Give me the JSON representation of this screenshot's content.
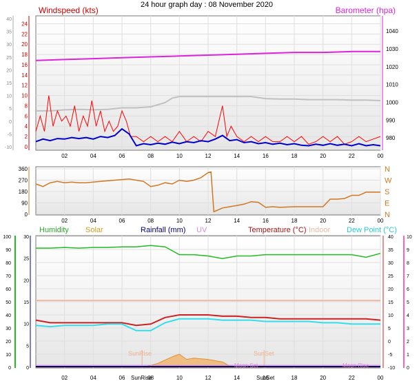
{
  "title": "24 hour graph day : 08 November 2020",
  "colors": {
    "gust": "#ff0000",
    "wind": "#0000cc",
    "wind_left_axis": "#cc0000",
    "baro": "#dd22dd",
    "baro_grey": "#c0c0c0",
    "direction": "#d07820",
    "humidity": "#22bb22",
    "solar": "#e8a030",
    "rain": "#000080",
    "uv": "#dd88dd",
    "temperature": "#cc2222",
    "indoor": "#f0b8a0",
    "dewpoint": "#33ddee",
    "right_temp_axis": "#ff66aa"
  },
  "chart_data": [
    {
      "type": "line",
      "panel": "wind",
      "title": "",
      "labels": {
        "left": "Windspeed (kts)",
        "right": "Barometer (hpa)"
      },
      "x_ticks": [
        "02",
        "04",
        "06",
        "08",
        "10",
        "12",
        "14",
        "16",
        "18",
        "20",
        "22",
        "00"
      ],
      "y_left_ticks": [
        "0",
        "2",
        "4",
        "6",
        "8",
        "10",
        "12",
        "14",
        "16",
        "18",
        "20",
        "22",
        "24"
      ],
      "y_left2_ticks": [
        "-10",
        "-5",
        "0",
        "5",
        "10",
        "15",
        "20",
        "25",
        "30",
        "35",
        "40"
      ],
      "y_right_ticks": [
        "980",
        "990",
        "1000",
        "1010",
        "1020",
        "1030",
        "1040"
      ],
      "ylim_left": [
        0,
        25
      ],
      "ylim_right": [
        975,
        1047
      ],
      "grid": true,
      "series": [
        {
          "name": "Barometer (hpa)",
          "key": "baro",
          "x": [
            0,
            2,
            4,
            6,
            8,
            10,
            12,
            14,
            16,
            18,
            20,
            22,
            24
          ],
          "values": [
            1023.5,
            1024,
            1024.5,
            1025,
            1025.5,
            1026,
            1026.5,
            1027,
            1027.5,
            1028,
            1028,
            1028.5,
            1028.5
          ]
        },
        {
          "key": "baro_grey",
          "x": [
            0,
            1,
            2,
            3,
            4,
            5,
            6,
            7,
            8,
            9,
            9.5,
            10,
            11,
            12,
            13,
            14,
            15,
            16,
            17,
            18,
            19,
            20,
            21,
            22,
            23,
            24
          ],
          "values": [
            7,
            7,
            7.2,
            7.3,
            7.2,
            7.3,
            7.6,
            7.6,
            7.8,
            8.6,
            9.5,
            9.8,
            9.8,
            9.8,
            9.8,
            9.8,
            9.8,
            9.4,
            9.3,
            9.3,
            9.2,
            9.2,
            9.2,
            9.1,
            9.1,
            9
          ]
        },
        {
          "key": "gust",
          "x": [
            0,
            0.3,
            0.6,
            0.9,
            1.2,
            1.5,
            1.8,
            2.1,
            2.4,
            2.7,
            3,
            3.3,
            3.6,
            3.9,
            4.2,
            4.5,
            4.8,
            5.1,
            5.4,
            5.7,
            6,
            6.3,
            6.6,
            7,
            7.5,
            8,
            8.5,
            9,
            9.5,
            10,
            10.5,
            11,
            11.5,
            12,
            12.5,
            13,
            13.3,
            13.6,
            14,
            14.5,
            15,
            15.5,
            16,
            16.5,
            17,
            17.5,
            18,
            18.5,
            19,
            19.5,
            20,
            20.5,
            21,
            21.5,
            22,
            22.5,
            23,
            23.5,
            24
          ],
          "values": [
            3,
            6,
            3,
            10,
            4,
            7,
            5,
            6,
            4,
            8,
            3,
            6,
            4,
            9,
            4,
            7,
            3,
            5,
            3,
            4,
            7,
            5,
            2,
            2,
            1,
            2,
            1,
            2,
            1,
            3,
            1,
            2,
            1,
            3,
            2,
            8,
            2,
            4,
            2,
            1,
            2,
            1,
            2,
            1,
            1,
            2,
            1,
            2,
            0.5,
            1,
            2,
            1,
            2,
            0.5,
            1,
            2,
            1,
            1.5,
            2
          ]
        },
        {
          "key": "wind",
          "x": [
            0,
            0.5,
            1,
            1.5,
            2,
            2.5,
            3,
            3.5,
            4,
            4.5,
            5,
            5.5,
            6,
            6.5,
            7,
            7.5,
            8,
            8.5,
            9,
            9.5,
            10,
            10.5,
            11,
            11.5,
            12,
            12.5,
            13,
            13.5,
            14,
            14.5,
            15,
            15.5,
            16,
            16.5,
            17,
            17.5,
            18,
            18.5,
            19,
            19.5,
            20,
            20.5,
            21,
            21.5,
            22,
            22.5,
            23,
            23.5,
            24
          ],
          "values": [
            1,
            1.5,
            1.2,
            1.6,
            1.5,
            1.8,
            1.6,
            1.8,
            1.5,
            2,
            1.8,
            2.2,
            3.5,
            2.5,
            0.2,
            0.6,
            0.4,
            0.7,
            0.5,
            0.9,
            0.6,
            1,
            0.8,
            1.2,
            1,
            1.5,
            2.2,
            1.2,
            1.4,
            0.8,
            1,
            0.6,
            0.8,
            0.5,
            0.7,
            0.4,
            0.6,
            0.3,
            0.2,
            0.5,
            0.3,
            0.6,
            0.3,
            0.5,
            0.2,
            0.6,
            0.2,
            0.4,
            0.2
          ]
        }
      ]
    },
    {
      "type": "line",
      "panel": "direction",
      "title": "",
      "x_ticks": [
        "02",
        "04",
        "06",
        "08",
        "10",
        "12",
        "14",
        "16",
        "18",
        "20",
        "22",
        "00"
      ],
      "y_ticks": [
        "0",
        "90",
        "180",
        "270",
        "360"
      ],
      "y_right_ticks": [
        "N",
        "E",
        "S",
        "W",
        "N"
      ],
      "ylim": [
        0,
        360
      ],
      "series": [
        {
          "key": "direction",
          "x": [
            0,
            0.5,
            1,
            1.5,
            2,
            2.5,
            3,
            3.5,
            4,
            4.5,
            5,
            5.5,
            6,
            6.5,
            7,
            7.5,
            8,
            8.5,
            9,
            9.5,
            10,
            10.5,
            11,
            11.5,
            12,
            12.2,
            12.4,
            12.6,
            12.8,
            13,
            13.5,
            14,
            14.5,
            15,
            15.5,
            16,
            16.5,
            17,
            18,
            19,
            20,
            20.5,
            21,
            21.5,
            22,
            22.5,
            23,
            24
          ],
          "values": [
            240,
            220,
            250,
            260,
            250,
            255,
            250,
            250,
            255,
            260,
            265,
            270,
            275,
            280,
            270,
            260,
            220,
            230,
            250,
            240,
            270,
            260,
            270,
            290,
            330,
            335,
            20,
            30,
            40,
            50,
            60,
            70,
            80,
            100,
            95,
            55,
            60,
            55,
            60,
            60,
            60,
            120,
            120,
            125,
            150,
            150,
            175,
            175
          ]
        }
      ]
    },
    {
      "type": "line",
      "panel": "temperature",
      "title": "",
      "labels": [
        "Humidity",
        "Solar",
        "Rainfall (mm)",
        "UV",
        "Temperature (°C)",
        "Indoor",
        "Dew Point (°C)"
      ],
      "x_ticks": [
        "02",
        "04",
        "06",
        "08",
        "10",
        "12",
        "14",
        "16",
        "18",
        "20",
        "22",
        "00"
      ],
      "y_humidity_ticks": [
        "0",
        "10",
        "20",
        "30",
        "40",
        "50",
        "60",
        "70",
        "80",
        "90",
        "100"
      ],
      "y_rain_ticks": [
        "0",
        "5",
        "10",
        "15",
        "20",
        "25",
        "30"
      ],
      "y_temp_ticks": [
        "-10",
        "-5",
        "0",
        "5",
        "10",
        "15",
        "20",
        "25",
        "30",
        "35",
        "40"
      ],
      "y_uv_ticks": [
        "0",
        "1",
        "2",
        "3",
        "4",
        "5",
        "6",
        "7",
        "8",
        "9",
        "10"
      ],
      "ylim_temp": [
        -10,
        40
      ],
      "annotations": [
        "SunRise",
        "SunSet",
        "SunRise",
        "SunSet",
        "Moon Set",
        "Moon Rise"
      ],
      "series": [
        {
          "name": "Humidity",
          "key": "humidity",
          "x": [
            0,
            1,
            2,
            3,
            4,
            5,
            6,
            7,
            8,
            9,
            10,
            11,
            12,
            13,
            14,
            15,
            16,
            17,
            18,
            19,
            20,
            21,
            22,
            23,
            24
          ],
          "values": [
            91,
            91,
            91.5,
            91,
            91.5,
            91.5,
            92,
            92,
            93,
            92,
            86,
            86,
            85,
            83,
            85,
            85,
            86,
            86,
            86,
            86,
            86,
            86,
            86,
            84,
            87
          ]
        },
        {
          "name": "Temperature (°C)",
          "key": "temperature",
          "x": [
            0,
            1,
            2,
            3,
            4,
            5,
            6,
            7,
            8,
            9,
            10,
            11,
            12,
            13,
            14,
            15,
            16,
            17,
            18,
            19,
            20,
            21,
            22,
            23,
            24
          ],
          "values": [
            8,
            7,
            7,
            7,
            7,
            7,
            7,
            6,
            6.5,
            9,
            10,
            10,
            10,
            9.5,
            9.5,
            9,
            9,
            8.5,
            8.5,
            8.5,
            8.5,
            8.5,
            8.5,
            8.5,
            8
          ]
        },
        {
          "name": "Dew Point (°C)",
          "key": "dewpoint",
          "x": [
            0,
            1,
            2,
            3,
            4,
            5,
            6,
            7,
            8,
            9,
            10,
            11,
            12,
            13,
            14,
            15,
            16,
            17,
            18,
            19,
            20,
            21,
            22,
            23,
            24
          ],
          "values": [
            6,
            5.5,
            6,
            6,
            6,
            6.5,
            6.5,
            4,
            4,
            7,
            8.5,
            8.5,
            8.5,
            8,
            8,
            8,
            7.5,
            7.5,
            7.5,
            7.5,
            7,
            7,
            6.5,
            6.5,
            6.5
          ]
        },
        {
          "name": "Indoor",
          "key": "indoor",
          "x": [
            0,
            24
          ],
          "values": [
            15.5,
            15.5
          ]
        },
        {
          "name": "Solar",
          "key": "solar",
          "x": [
            0,
            7.5,
            8.5,
            9.5,
            10,
            10.5,
            11,
            12,
            13,
            13.5,
            15,
            24
          ],
          "values": [
            0,
            0,
            1.5,
            4,
            5,
            3,
            3.5,
            3,
            2,
            0.5,
            0,
            0
          ]
        }
      ]
    }
  ]
}
